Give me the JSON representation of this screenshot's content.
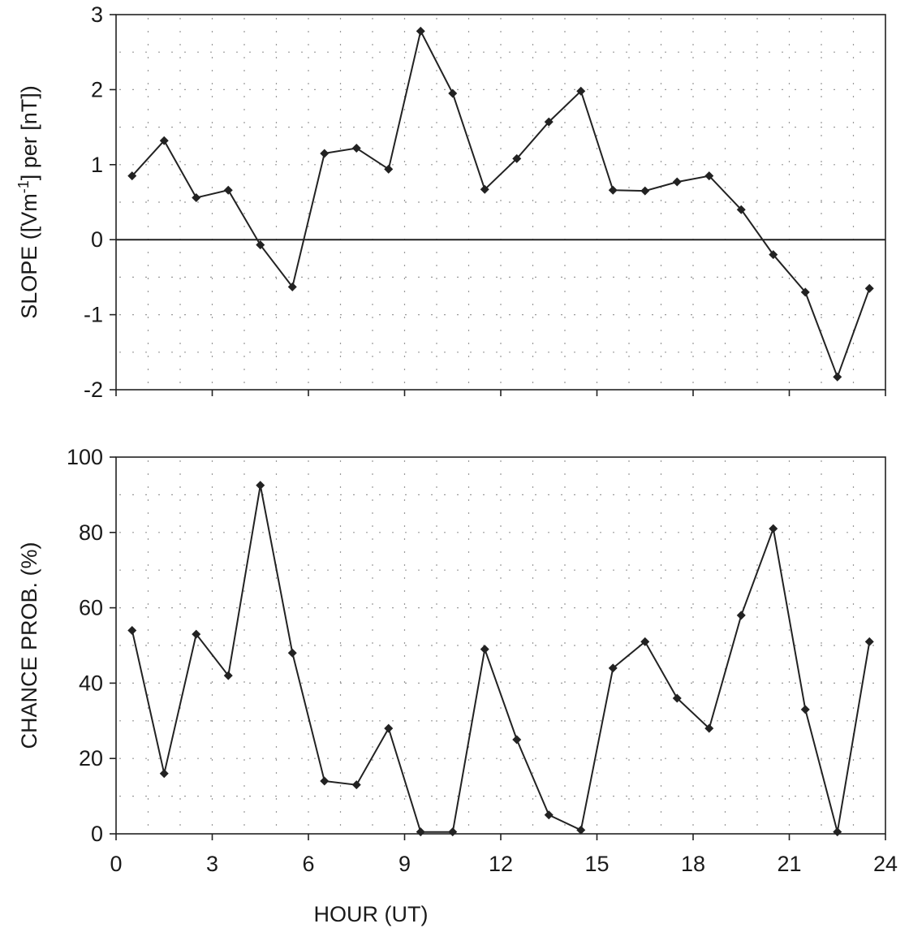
{
  "chart_data": [
    {
      "type": "line",
      "title": "",
      "xlabel": "",
      "ylabel": "SLOPE ([Vm-1] per [nT])",
      "ylabel_parts": {
        "before": "SLOPE ([Vm",
        "superscript": "-1",
        "after": "] per [nT])"
      },
      "xlim": [
        0,
        24
      ],
      "ylim": [
        -2,
        3
      ],
      "yticks": [
        -2,
        -1,
        0,
        1,
        2,
        3
      ],
      "xticks": [
        0,
        3,
        6,
        9,
        12,
        15,
        18,
        21,
        24
      ],
      "show_x_tick_labels": false,
      "zero_line": true,
      "grid": true,
      "series": [
        {
          "x": [
            0.5,
            1.5,
            2.5,
            3.5,
            4.5,
            5.5,
            6.5,
            7.5,
            8.5,
            9.5,
            10.5,
            11.5,
            12.5,
            13.5,
            14.5,
            15.5,
            16.5,
            17.5,
            18.5,
            19.5,
            20.5,
            21.5,
            22.5,
            23.5
          ],
          "values": [
            0.85,
            1.32,
            0.56,
            0.66,
            -0.07,
            -0.63,
            1.15,
            1.22,
            0.94,
            2.78,
            1.95,
            0.67,
            1.08,
            1.57,
            1.98,
            0.66,
            0.65,
            0.77,
            0.85,
            0.4,
            -0.2,
            -0.7,
            -1.83,
            -0.65
          ]
        }
      ]
    },
    {
      "type": "line",
      "title": "",
      "xlabel": "HOUR (UT)",
      "ylabel": "CHANCE PROB. (%)",
      "xlim": [
        0,
        24
      ],
      "ylim": [
        0,
        100
      ],
      "yticks": [
        0,
        20,
        40,
        60,
        80,
        100
      ],
      "xticks": [
        0,
        3,
        6,
        9,
        12,
        15,
        18,
        21,
        24
      ],
      "show_x_tick_labels": true,
      "zero_line": false,
      "grid": true,
      "series": [
        {
          "x": [
            0.5,
            1.5,
            2.5,
            3.5,
            4.5,
            5.5,
            6.5,
            7.5,
            8.5,
            9.5,
            10.5,
            11.5,
            12.5,
            13.5,
            14.5,
            15.5,
            16.5,
            17.5,
            18.5,
            19.5,
            20.5,
            21.5,
            22.5,
            23.5
          ],
          "values": [
            54,
            16,
            53,
            42,
            92.5,
            48,
            14,
            13,
            28,
            0.5,
            0.5,
            49,
            25,
            5,
            1,
            44,
            51,
            36,
            28,
            58,
            81,
            33,
            0.5,
            51
          ]
        }
      ]
    }
  ]
}
